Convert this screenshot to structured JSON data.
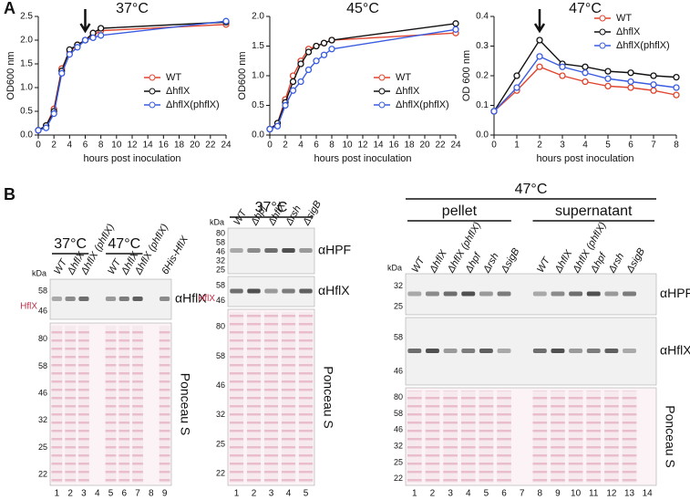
{
  "figure": {
    "panel_a_label": "A",
    "panel_b_label": "B"
  },
  "chart_data": [
    {
      "type": "line",
      "title": "37°C",
      "xlabel": "hours post inoculation",
      "ylabel": "OD600 nm",
      "legend": "center right",
      "arrow_x": 6,
      "x": [
        0,
        1,
        2,
        3,
        4,
        5,
        6,
        7,
        8,
        24
      ],
      "xlim": [
        0,
        24
      ],
      "xticks": [
        0,
        2,
        4,
        6,
        8,
        10,
        12,
        14,
        16,
        18,
        20,
        22,
        24
      ],
      "ylim": [
        0,
        2.5
      ],
      "yticks": [
        {
          "value": 0,
          "label": "0.0"
        },
        0.5,
        {
          "value": 1,
          "label": "1.0"
        },
        1.5,
        {
          "value": 2,
          "label": "2.0"
        },
        2.5
      ],
      "series": [
        {
          "name": "WT",
          "color": "#e0452f",
          "values": [
            0.1,
            0.2,
            0.55,
            1.4,
            1.75,
            1.9,
            2.0,
            2.1,
            2.2,
            2.33
          ]
        },
        {
          "name": "ΔhflX",
          "color": "#111111",
          "values": [
            0.1,
            0.2,
            0.5,
            1.35,
            1.8,
            1.9,
            2.0,
            2.15,
            2.25,
            2.38
          ]
        },
        {
          "name": "ΔhflX(phflX)",
          "color": "#3a5ce0",
          "values": [
            0.1,
            0.15,
            0.45,
            1.3,
            1.7,
            1.85,
            2.0,
            2.05,
            2.1,
            2.4
          ]
        }
      ]
    },
    {
      "type": "line",
      "title": "45°C",
      "xlabel": "hours post inoculation",
      "ylabel": "OD600 nm",
      "legend": "center right",
      "x": [
        0,
        1,
        2,
        3,
        4,
        5,
        6,
        7,
        8,
        24
      ],
      "xlim": [
        0,
        24
      ],
      "xticks": [
        0,
        2,
        4,
        6,
        8,
        10,
        12,
        14,
        16,
        18,
        20,
        22,
        24
      ],
      "ylim": [
        0,
        2
      ],
      "yticks": [
        {
          "value": 0,
          "label": "0.0"
        },
        0.5,
        {
          "value": 1,
          "label": "1.0"
        },
        1.5,
        {
          "value": 2,
          "label": "2.0"
        }
      ],
      "series": [
        {
          "name": "WT",
          "color": "#e0452f",
          "values": [
            0.1,
            0.2,
            0.6,
            1.0,
            1.25,
            1.45,
            1.5,
            1.55,
            1.6,
            1.72
          ]
        },
        {
          "name": "ΔhflX",
          "color": "#111111",
          "values": [
            0.1,
            0.2,
            0.55,
            0.9,
            1.2,
            1.4,
            1.5,
            1.55,
            1.6,
            1.88
          ]
        },
        {
          "name": "ΔhflX(phflX)",
          "color": "#3a5ce0",
          "values": [
            0.1,
            0.15,
            0.5,
            0.75,
            0.9,
            1.1,
            1.25,
            1.35,
            1.45,
            1.78
          ]
        }
      ]
    },
    {
      "type": "line",
      "title": "47°C",
      "xlabel": "hours post inoculation",
      "ylabel": "OD 600 nm",
      "legend": "upper right",
      "arrow_x": 2,
      "x": [
        0,
        1,
        2,
        3,
        4,
        5,
        6,
        7,
        8
      ],
      "xlim": [
        0,
        8
      ],
      "xticks": [
        0,
        1,
        2,
        3,
        4,
        5,
        6,
        7,
        8
      ],
      "ylim": [
        0,
        0.4
      ],
      "yticks": [
        {
          "value": 0,
          "label": "0.0"
        },
        0.1,
        0.2,
        0.3,
        0.4
      ],
      "series": [
        {
          "name": "WT",
          "color": "#e0452f",
          "values": [
            0.08,
            0.15,
            0.23,
            0.2,
            0.18,
            0.165,
            0.16,
            0.15,
            0.135
          ]
        },
        {
          "name": "ΔhflX",
          "color": "#111111",
          "values": [
            0.08,
            0.2,
            0.32,
            0.24,
            0.23,
            0.215,
            0.21,
            0.2,
            0.195
          ]
        },
        {
          "name": "ΔhflX(phflX)",
          "color": "#3a5ce0",
          "values": [
            0.08,
            0.16,
            0.265,
            0.23,
            0.21,
            0.19,
            0.18,
            0.17,
            0.16
          ]
        }
      ]
    }
  ],
  "blots": [
    {
      "groups": [
        {
          "label": "37°C",
          "from": 1,
          "to": 3
        },
        {
          "label": "47°C",
          "from": 5,
          "to": 7
        }
      ],
      "lanes": [
        "WT",
        "ΔhflX",
        "ΔhflX (phflX)",
        null,
        "WT",
        "ΔhflX",
        "ΔhflX (phflX)",
        null,
        "6His-HflX"
      ],
      "lane_numbers": [
        "1",
        "2",
        "3",
        "4",
        "5",
        "6",
        "7",
        "8",
        "9"
      ],
      "kda": "kDa",
      "band_label": "HflX",
      "panels": [
        {
          "markers": [
            "58",
            "46"
          ],
          "label": "αHflX"
        },
        {
          "markers": [
            "80",
            "58",
            "46",
            "32",
            "25",
            "22"
          ],
          "label": "Ponceau S"
        }
      ]
    },
    {
      "groups": [
        {
          "label": "37°C",
          "from": 1,
          "to": 5
        }
      ],
      "lanes": [
        "WT",
        "Δhpf",
        "ΔhflX",
        "Δrsh",
        "ΔsigB"
      ],
      "lane_numbers": [
        "1",
        "2",
        "3",
        "4",
        "5"
      ],
      "kda": "kDa",
      "band_label": "HflX",
      "panels": [
        {
          "markers": [
            "80",
            "58",
            "46",
            "32",
            "25"
          ],
          "label": "αHPF"
        },
        {
          "markers": [
            "58",
            "46"
          ],
          "label": "αHflX"
        },
        {
          "markers": [
            "80",
            "58",
            "46",
            "32",
            "25",
            "22"
          ],
          "label": "Ponceau S"
        }
      ]
    },
    {
      "title": "47°C",
      "groups": [
        {
          "label": "pellet",
          "from": 1,
          "to": 6
        },
        {
          "label": "supernatant",
          "from": 8,
          "to": 14
        }
      ],
      "lanes": [
        "WT",
        "ΔhflX",
        "ΔhflX (phflX)",
        "Δhpf",
        "Δrsh",
        "ΔsigB",
        null,
        "WT",
        "ΔhflX",
        "ΔhflX (phflX)",
        "Δhpf",
        "Δrsh",
        "ΔsigB",
        null
      ],
      "lane_numbers": [
        "1",
        "2",
        "3",
        "4",
        "5",
        "6",
        "7",
        "8",
        "9",
        "10",
        "11",
        "12",
        "13",
        "14"
      ],
      "kda": "kDa",
      "panels": [
        {
          "markers": [
            "32",
            "25"
          ],
          "label": "αHPF"
        },
        {
          "markers": [
            "58",
            "46"
          ],
          "label": "αHflX"
        },
        {
          "markers": [
            "80",
            "58",
            "46",
            "32",
            "25",
            "22"
          ],
          "label": "Ponceau S"
        }
      ]
    }
  ]
}
